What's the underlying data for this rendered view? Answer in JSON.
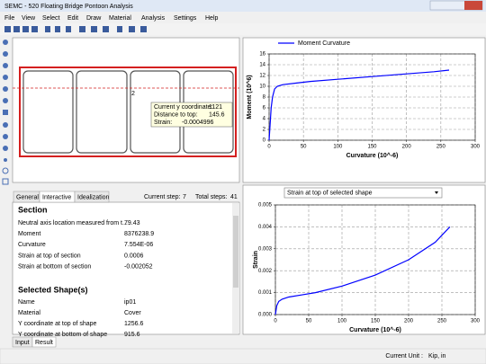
{
  "window": {
    "title": "SEMC - 520 Floating Bridge Pontoon Analysis",
    "menu": [
      "File",
      "View",
      "Select",
      "Edit",
      "Draw",
      "Material",
      "Analysis",
      "Settings",
      "Help"
    ]
  },
  "drawing": {
    "shape_label": "2",
    "tooltip": [
      [
        "Current y coordinate:",
        "1121"
      ],
      [
        "Distance to top:",
        "145.6"
      ],
      [
        "Strain:",
        "-0.0004996"
      ]
    ]
  },
  "info": {
    "tabs": [
      "General",
      "Interactive",
      "Idealization"
    ],
    "current_step_label": "Current step:",
    "current_step": "7",
    "total_steps_label": "Total steps:",
    "total_steps": "41",
    "section_title": "Section",
    "section_rows": [
      [
        "Neutral axis location measured from t...",
        "79.43"
      ],
      [
        "Moment",
        "8376238.9"
      ],
      [
        "Curvature",
        "7.554E-06"
      ],
      [
        "Strain at top of section",
        "0.0006"
      ],
      [
        "Strain at bottom of section",
        "-0.002052"
      ]
    ],
    "shape_title": "Selected Shape(s)",
    "shape_rows": [
      [
        "Name",
        "ip01"
      ],
      [
        "Material",
        "Cover"
      ],
      [
        "Y coordinate at top of shape",
        "1256.6"
      ],
      [
        "Y coordinate at bottom of shape",
        "915.6"
      ]
    ],
    "bottom_tabs": [
      "Input",
      "Result"
    ],
    "unit_label": "Current Unit :",
    "unit": "Kip, in"
  },
  "result_selector": "Strain at top of selected shape",
  "chart_data": [
    {
      "type": "line",
      "xlabel": "Curvature (10^-6)",
      "ylabel": "Moment (10^6)",
      "xlim": [
        0,
        300
      ],
      "xticks": [
        0,
        50,
        100,
        150,
        200,
        250,
        300
      ],
      "ylim": [
        0,
        16
      ],
      "yticks": [
        0,
        2,
        4,
        6,
        8,
        10,
        12,
        14,
        16
      ],
      "grid": true,
      "legend": "top",
      "x": [
        0,
        1,
        2,
        3,
        5,
        8,
        12,
        20,
        40,
        60,
        100,
        150,
        200,
        240,
        262
      ],
      "series": [
        {
          "name": "Moment Curvature",
          "color": "#0000ff",
          "values": [
            0,
            2,
            4,
            6,
            8,
            9.5,
            10,
            10.3,
            10.6,
            10.9,
            11.3,
            11.8,
            12.3,
            12.7,
            13
          ]
        }
      ]
    },
    {
      "type": "line",
      "xlabel": "Curvature (10^-6)",
      "ylabel": "Strain",
      "xlim": [
        0,
        300
      ],
      "xticks": [
        0,
        50,
        100,
        150,
        200,
        250,
        300
      ],
      "ylim": [
        0,
        0.005
      ],
      "yticks": [
        {
          "value": 0,
          "label": "0.000"
        },
        {
          "value": 0.001,
          "label": "0.001"
        },
        {
          "value": 0.002,
          "label": "0.002"
        },
        {
          "value": 0.003,
          "label": "0.003"
        },
        {
          "value": 0.004,
          "label": "0.004"
        },
        {
          "value": 0.005,
          "label": "0.005"
        }
      ],
      "grid": true,
      "x": [
        0,
        2,
        5,
        10,
        20,
        40,
        60,
        100,
        150,
        200,
        240,
        262
      ],
      "series": [
        {
          "color": "#0000ff",
          "values": [
            0,
            0.0004,
            0.0006,
            0.0007,
            0.0008,
            0.0009,
            0.001,
            0.0013,
            0.0018,
            0.0025,
            0.0033,
            0.004
          ]
        }
      ]
    }
  ]
}
